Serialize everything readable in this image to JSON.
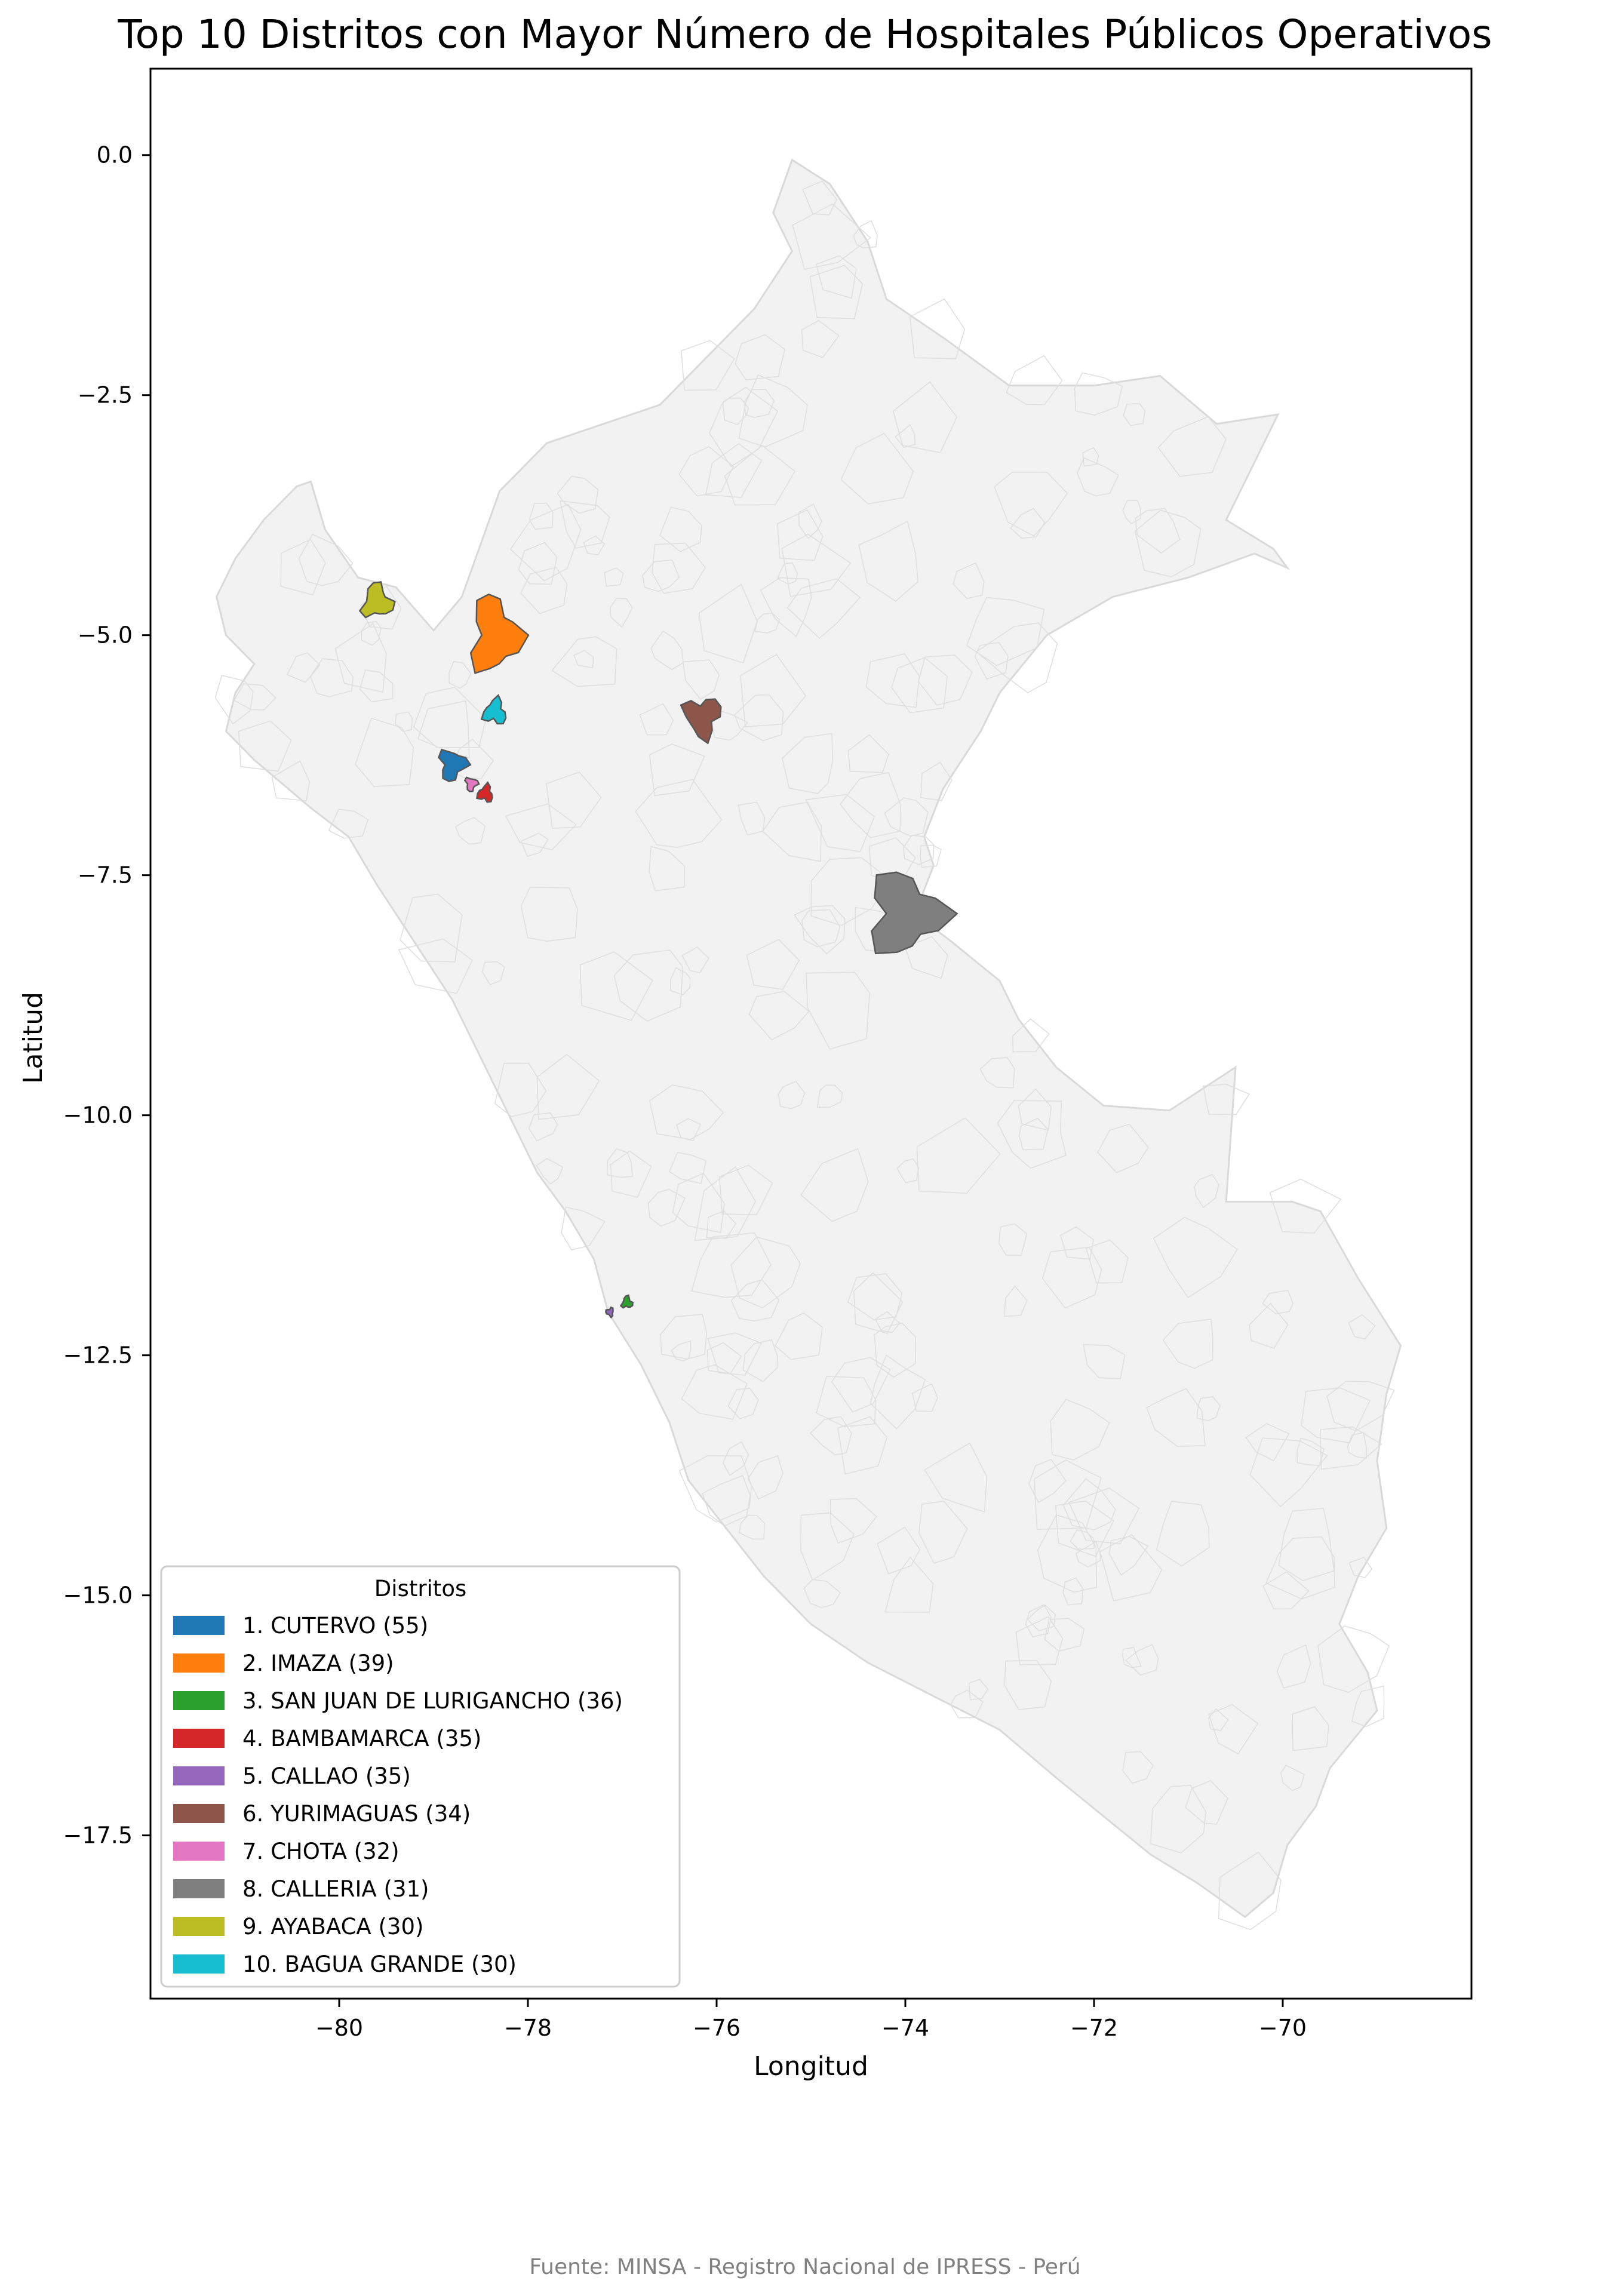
{
  "title": "Top 10 Distritos con Mayor Número de Hospitales Públicos Operativos",
  "source": "Fuente: MINSA - Registro Nacional de IPRESS - Perú",
  "colors": {
    "background_region": "#f2f2f2",
    "region_border": "#d9d9d9",
    "highlight_border": "#555555"
  },
  "chart_data": {
    "type": "map",
    "xlabel": "Longitud",
    "ylabel": "Latitud",
    "xlim": [
      -82,
      -68
    ],
    "ylim": [
      -19.2,
      0.9
    ],
    "xticks": [
      -80,
      -78,
      -76,
      -74,
      -72,
      -70
    ],
    "xtick_labels": [
      "−80",
      "−78",
      "−76",
      "−74",
      "−72",
      "−70"
    ],
    "yticks": [
      0,
      -2.5,
      -5,
      -7.5,
      -10,
      -12.5,
      -15,
      -17.5
    ],
    "ytick_labels": [
      "0.0",
      "−2.5",
      "−5.0",
      "−7.5",
      "−10.0",
      "−12.5",
      "−15.0",
      "−17.5"
    ],
    "legend": {
      "title": "Distritos",
      "placement": "lower-left"
    },
    "districts": [
      {
        "rank": 1,
        "name": "CUTERVO",
        "hospitals": 55,
        "label": "1. CUTERVO (55)",
        "color": "#1f77b4",
        "lon": -78.8,
        "lat": -6.35
      },
      {
        "rank": 2,
        "name": "IMAZA",
        "hospitals": 39,
        "label": "2. IMAZA (39)",
        "color": "#ff7f0e",
        "lon": -78.35,
        "lat": -5.0
      },
      {
        "rank": 3,
        "name": "SAN JUAN DE LURIGANCHO",
        "hospitals": 36,
        "label": "3. SAN JUAN DE LURIGANCHO (36)",
        "color": "#2ca02c",
        "lon": -76.95,
        "lat": -11.95
      },
      {
        "rank": 4,
        "name": "BAMBAMARCA",
        "hospitals": 35,
        "label": "4. BAMBAMARCA (35)",
        "color": "#d62728",
        "lon": -78.45,
        "lat": -6.65
      },
      {
        "rank": 5,
        "name": "CALLAO",
        "hospitals": 35,
        "label": "5. CALLAO (35)",
        "color": "#9467bd",
        "lon": -77.13,
        "lat": -12.05
      },
      {
        "rank": 6,
        "name": "YURIMAGUAS",
        "hospitals": 34,
        "label": "6. YURIMAGUAS (34)",
        "color": "#8c564b",
        "lon": -76.15,
        "lat": -5.85
      },
      {
        "rank": 7,
        "name": "CHOTA",
        "hospitals": 32,
        "label": "7. CHOTA (32)",
        "color": "#e377c2",
        "lon": -78.6,
        "lat": -6.55
      },
      {
        "rank": 8,
        "name": "CALLERIA",
        "hospitals": 31,
        "label": "8. CALLERIA (31)",
        "color": "#7f7f7f",
        "lon": -74.0,
        "lat": -7.9
      },
      {
        "rank": 9,
        "name": "AYABACA",
        "hospitals": 30,
        "label": "9. AYABACA (30)",
        "color": "#bcbd22",
        "lon": -79.6,
        "lat": -4.65
      },
      {
        "rank": 10,
        "name": "BAGUA GRANDE",
        "hospitals": 30,
        "label": "10. BAGUA GRANDE (30)",
        "color": "#17becf",
        "lon": -78.35,
        "lat": -5.8
      }
    ]
  }
}
